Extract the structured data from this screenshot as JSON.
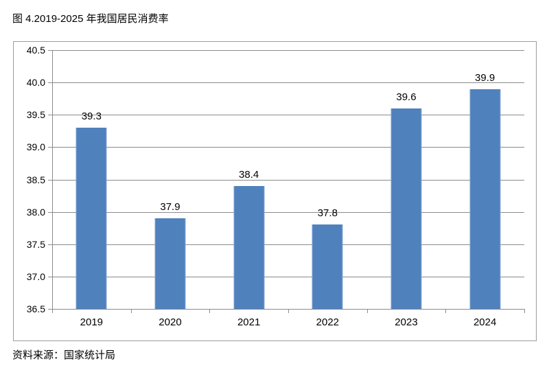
{
  "title": "图 4.2019-2025 年我国居民消费率",
  "source": "资料来源：国家统计局",
  "chart_data": {
    "type": "bar",
    "title": "图 4.2019-2025 年我国居民消费率",
    "categories": [
      "2019",
      "2020",
      "2021",
      "2022",
      "2023",
      "2024"
    ],
    "values": [
      39.3,
      37.9,
      38.4,
      37.8,
      39.6,
      39.9
    ],
    "xlabel": "",
    "ylabel": "",
    "ylim": [
      36.5,
      40.5
    ],
    "ytick_step": 0.5,
    "ytick_labels": [
      "40.5",
      "40.0",
      "39.5",
      "39.0",
      "38.5",
      "38.0",
      "37.5",
      "37.0",
      "36.5"
    ],
    "grid": true,
    "legend": false,
    "bar_color": "#4f81bd",
    "grid_color": "#8a8a8a",
    "text_color": "#000000",
    "data_labels": [
      "39.3",
      "37.9",
      "38.4",
      "37.8",
      "39.6",
      "39.9"
    ]
  }
}
